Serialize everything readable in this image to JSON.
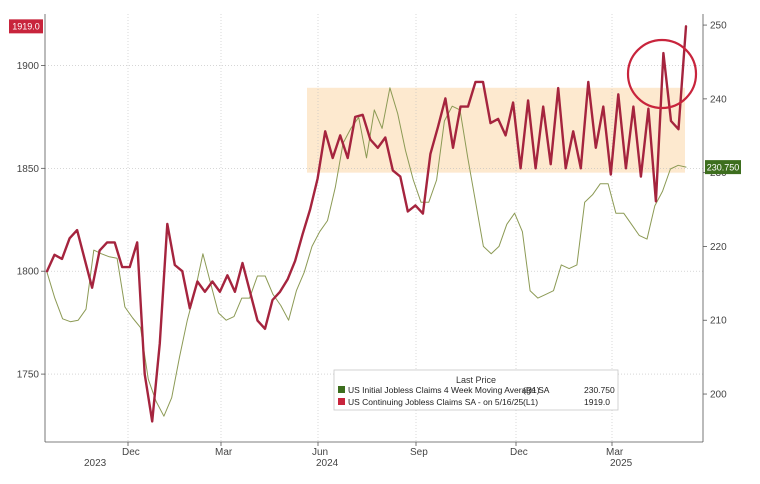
{
  "chart_data": {
    "type": "line",
    "title": "",
    "xlabel": "",
    "ylabel": "",
    "grid": true,
    "legend_position": "bottom-right",
    "legend_title": "Last Price",
    "x_ticks": [
      "Dec",
      "Mar",
      "Jun",
      "Sep",
      "Dec",
      "Mar"
    ],
    "x_year_labels": [
      "2023",
      "2024",
      "2025"
    ],
    "left_axis": {
      "ylim": [
        1717,
        1925
      ],
      "ticks": [
        1750,
        1800,
        1850,
        1900
      ]
    },
    "right_axis": {
      "ylim": [
        193.5,
        251.5
      ],
      "ticks": [
        200,
        210,
        220,
        230,
        240,
        250
      ]
    },
    "highlight_band": {
      "axis": "right",
      "y_range": [
        230,
        241.5
      ],
      "color": "#fde9cf"
    },
    "series": [
      {
        "name": "US Initial Jobless Claims 4 Week Moving Average SA",
        "axis_label": "(R1)",
        "last_value": "230.750",
        "axis": "right",
        "color": "#8c9a55",
        "marker_color": "#3d6e1e",
        "values": [
          216.5,
          213.0,
          210.2,
          209.8,
          210.0,
          211.5,
          219.5,
          219.0,
          218.6,
          218.4,
          211.8,
          210.3,
          209.0,
          202.0,
          199.0,
          197.0,
          199.5,
          205.0,
          210.0,
          214.0,
          219.0,
          215.0,
          211.0,
          210.0,
          210.5,
          213.0,
          213.0,
          216.0,
          216.0,
          213.5,
          212.0,
          210.0,
          214.0,
          216.5,
          220.0,
          222.0,
          223.5,
          228.0,
          234.0,
          236.0,
          237.5,
          232.0,
          238.5,
          236.0,
          241.5,
          238.0,
          233.0,
          229.0,
          226.0,
          226.0,
          229.0,
          237.0,
          239.0,
          238.5,
          232.0,
          226.0,
          220.0,
          219.0,
          220.0,
          223.0,
          224.5,
          222.0,
          214.0,
          213.0,
          213.5,
          214.0,
          217.5,
          217.0,
          217.5,
          226.0,
          227.0,
          228.5,
          228.5,
          224.5,
          224.5,
          223.0,
          221.5,
          221.0,
          225.5,
          227.5,
          230.5,
          231.0,
          230.75
        ]
      },
      {
        "name": "US Continuing Jobless Claims SA - on 5/16/25",
        "axis_label": "(L1)",
        "last_value": "1919.0",
        "axis": "left",
        "color": "#a5243e",
        "marker_color": "#c8243c",
        "values": [
          1800,
          1808,
          1806,
          1816,
          1820,
          1806,
          1792,
          1810,
          1814,
          1814,
          1802,
          1802,
          1814,
          1750,
          1727,
          1765,
          1823,
          1803,
          1800,
          1782,
          1795,
          1790,
          1795,
          1790,
          1798,
          1790,
          1804,
          1790,
          1776,
          1772,
          1786,
          1790,
          1796,
          1805,
          1818,
          1830,
          1845,
          1868,
          1855,
          1866,
          1855,
          1875,
          1876,
          1864,
          1860,
          1865,
          1849,
          1846,
          1829,
          1832,
          1828,
          1857,
          1870,
          1884,
          1860,
          1880,
          1880,
          1892,
          1892,
          1872,
          1874,
          1866,
          1882,
          1850,
          1883,
          1850,
          1880,
          1852,
          1889,
          1850,
          1868,
          1850,
          1892,
          1860,
          1880,
          1847,
          1886,
          1850,
          1880,
          1846,
          1879,
          1834,
          1906,
          1873,
          1869,
          1919
        ]
      }
    ]
  },
  "annotation": {
    "shape": "circle",
    "color": "#c8243c"
  }
}
